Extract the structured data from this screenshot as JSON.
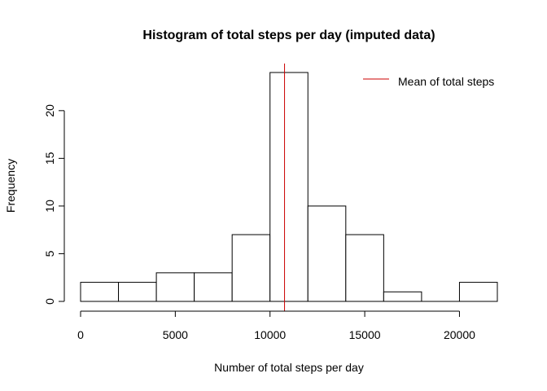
{
  "chart_data": {
    "type": "bar",
    "subtype": "histogram",
    "title": "Histogram of total steps per day (imputed data)",
    "xlabel": "Number of total steps per day",
    "ylabel": "Frequency",
    "bins": [
      {
        "from": 0,
        "to": 2000,
        "count": 2
      },
      {
        "from": 2000,
        "to": 4000,
        "count": 2
      },
      {
        "from": 4000,
        "to": 6000,
        "count": 3
      },
      {
        "from": 6000,
        "to": 8000,
        "count": 3
      },
      {
        "from": 8000,
        "to": 10000,
        "count": 7
      },
      {
        "from": 10000,
        "to": 12000,
        "count": 24
      },
      {
        "from": 12000,
        "to": 14000,
        "count": 10
      },
      {
        "from": 14000,
        "to": 16000,
        "count": 7
      },
      {
        "from": 16000,
        "to": 18000,
        "count": 1
      },
      {
        "from": 18000,
        "to": 20000,
        "count": 0
      },
      {
        "from": 20000,
        "to": 22000,
        "count": 2
      }
    ],
    "xlim": [
      0,
      22000
    ],
    "ylim": [
      0,
      24
    ],
    "x_ticks": [
      0,
      5000,
      10000,
      15000,
      20000
    ],
    "y_ticks": [
      0,
      5,
      10,
      15,
      20
    ],
    "mean_line": {
      "value": 10766,
      "color": "#cc0000"
    },
    "bar_fill": "#ffffff",
    "bar_stroke": "#000000",
    "grid": false,
    "legend": {
      "position": "top-right",
      "entries": [
        {
          "label": "Mean of total steps",
          "color": "#cc0000"
        }
      ]
    }
  }
}
